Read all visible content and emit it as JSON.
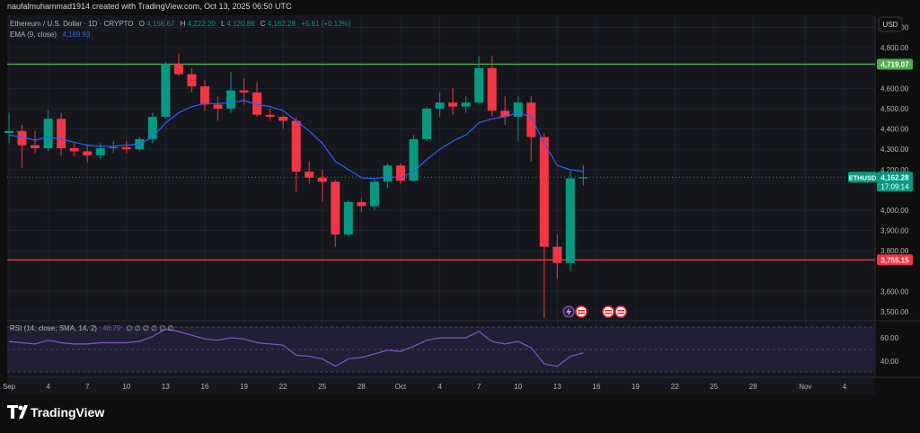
{
  "header": {
    "watermark": "naufalmuhammad1914 created with TradingView.com, Oct 13, 2025 06:50 UTC",
    "symbol": "Ethereum / U.S. Dollar · 1D · CRYPTO",
    "ohlc": {
      "o_label": "O",
      "o_value": "4,156.67",
      "h_label": "H",
      "h_value": "4,222.20",
      "l_label": "L",
      "l_value": "4,120.86",
      "c_label": "C",
      "c_value": "4,162.28",
      "change": "+5.61 (+0.13%)"
    },
    "ema_label": "EMA (9, close)",
    "ema_value": "4,189.93",
    "currency": "USD"
  },
  "rsi_header": {
    "label": "RSI (14, close, SMA, 14, 2)",
    "value": "46.79",
    "placeholders": "∅ ∅ ∅ ∅ ∅ ∅"
  },
  "price_labels": [
    {
      "text": "4,900.00",
      "value": 4900
    },
    {
      "text": "4,800.00",
      "value": 4800
    },
    {
      "text": "4,600.00",
      "value": 4600
    },
    {
      "text": "4,500.00",
      "value": 4500
    },
    {
      "text": "4,400.00",
      "value": 4400
    },
    {
      "text": "4,300.00",
      "value": 4300
    },
    {
      "text": "4,200.00",
      "value": 4200
    },
    {
      "text": "4,000.00",
      "value": 4000
    },
    {
      "text": "3,900.00",
      "value": 3900
    },
    {
      "text": "3,800.00",
      "value": 3800
    },
    {
      "text": "3,600.00",
      "value": 3600
    },
    {
      "text": "3,500.00",
      "value": 3500
    }
  ],
  "rsi_labels": [
    {
      "text": "60.00",
      "value": 60
    },
    {
      "text": "40.00",
      "value": 40
    }
  ],
  "horizontal_lines": [
    {
      "name": "resistance-line",
      "value": 4719.07,
      "label": "4,719.07",
      "color": "#4caf50"
    },
    {
      "name": "support-line",
      "value": 3755.15,
      "label": "3,755.15",
      "color": "#f23645"
    }
  ],
  "current_price": {
    "symbol": "ETHUSD",
    "price": "4,162.28",
    "countdown": "17:09:14",
    "value": 4162.28,
    "color": "#089981"
  },
  "x_labels": [
    {
      "text": "Sep",
      "day": 1
    },
    {
      "text": "4",
      "day": 4
    },
    {
      "text": "7",
      "day": 7
    },
    {
      "text": "10",
      "day": 10
    },
    {
      "text": "13",
      "day": 13
    },
    {
      "text": "16",
      "day": 16
    },
    {
      "text": "19",
      "day": 19
    },
    {
      "text": "22",
      "day": 22
    },
    {
      "text": "25",
      "day": 25
    },
    {
      "text": "28",
      "day": 28
    },
    {
      "text": "Oct",
      "day": 31
    },
    {
      "text": "4",
      "day": 34
    },
    {
      "text": "7",
      "day": 37
    },
    {
      "text": "10",
      "day": 40
    },
    {
      "text": "13",
      "day": 43
    },
    {
      "text": "16",
      "day": 46
    },
    {
      "text": "19",
      "day": 49
    },
    {
      "text": "22",
      "day": 52
    },
    {
      "text": "25",
      "day": 55
    },
    {
      "text": "28",
      "day": 58
    },
    {
      "text": "Nov",
      "day": 62
    },
    {
      "text": "4",
      "day": 65
    }
  ],
  "logo": {
    "text": "TradingView"
  },
  "colors": {
    "up": "#089981",
    "down": "#f23645",
    "ema": "#2962ff",
    "rsi": "#7e57c2",
    "grid": "#1f222b",
    "text": "#b2b5be"
  },
  "chart_data": {
    "type": "candlestick",
    "title": "Ethereum / U.S. Dollar · 1D · CRYPTO",
    "ylim": [
      3460,
      4960
    ],
    "candles": [
      {
        "date": "2025-09-01",
        "o": 4380,
        "h": 4480,
        "l": 4330,
        "c": 4390
      },
      {
        "date": "2025-09-02",
        "o": 4390,
        "h": 4420,
        "l": 4210,
        "c": 4320
      },
      {
        "date": "2025-09-03",
        "o": 4320,
        "h": 4390,
        "l": 4280,
        "c": 4305
      },
      {
        "date": "2025-09-04",
        "o": 4305,
        "h": 4490,
        "l": 4290,
        "c": 4450
      },
      {
        "date": "2025-09-05",
        "o": 4450,
        "h": 4480,
        "l": 4270,
        "c": 4305
      },
      {
        "date": "2025-09-06",
        "o": 4305,
        "h": 4330,
        "l": 4265,
        "c": 4290
      },
      {
        "date": "2025-09-07",
        "o": 4290,
        "h": 4320,
        "l": 4235,
        "c": 4270
      },
      {
        "date": "2025-09-08",
        "o": 4270,
        "h": 4330,
        "l": 4250,
        "c": 4305
      },
      {
        "date": "2025-09-09",
        "o": 4305,
        "h": 4340,
        "l": 4280,
        "c": 4310
      },
      {
        "date": "2025-09-10",
        "o": 4310,
        "h": 4340,
        "l": 4280,
        "c": 4300
      },
      {
        "date": "2025-09-11",
        "o": 4300,
        "h": 4360,
        "l": 4290,
        "c": 4350
      },
      {
        "date": "2025-09-12",
        "o": 4350,
        "h": 4480,
        "l": 4330,
        "c": 4460
      },
      {
        "date": "2025-09-13",
        "o": 4460,
        "h": 4730,
        "l": 4450,
        "c": 4720
      },
      {
        "date": "2025-09-14",
        "o": 4720,
        "h": 4770,
        "l": 4660,
        "c": 4670
      },
      {
        "date": "2025-09-15",
        "o": 4670,
        "h": 4700,
        "l": 4580,
        "c": 4610
      },
      {
        "date": "2025-09-16",
        "o": 4610,
        "h": 4640,
        "l": 4490,
        "c": 4520
      },
      {
        "date": "2025-09-17",
        "o": 4520,
        "h": 4560,
        "l": 4440,
        "c": 4500
      },
      {
        "date": "2025-09-18",
        "o": 4500,
        "h": 4680,
        "l": 4480,
        "c": 4590
      },
      {
        "date": "2025-09-19",
        "o": 4590,
        "h": 4650,
        "l": 4520,
        "c": 4580
      },
      {
        "date": "2025-09-20",
        "o": 4580,
        "h": 4630,
        "l": 4460,
        "c": 4470
      },
      {
        "date": "2025-09-21",
        "o": 4470,
        "h": 4500,
        "l": 4440,
        "c": 4460
      },
      {
        "date": "2025-09-22",
        "o": 4460,
        "h": 4470,
        "l": 4400,
        "c": 4440
      },
      {
        "date": "2025-09-23",
        "o": 4440,
        "h": 4460,
        "l": 4090,
        "c": 4190
      },
      {
        "date": "2025-09-24",
        "o": 4190,
        "h": 4240,
        "l": 4130,
        "c": 4160
      },
      {
        "date": "2025-09-25",
        "o": 4160,
        "h": 4200,
        "l": 4040,
        "c": 4140
      },
      {
        "date": "2025-09-26",
        "o": 4140,
        "h": 4150,
        "l": 3820,
        "c": 3880
      },
      {
        "date": "2025-09-27",
        "o": 3880,
        "h": 4050,
        "l": 3870,
        "c": 4040
      },
      {
        "date": "2025-09-28",
        "o": 4040,
        "h": 4060,
        "l": 3990,
        "c": 4020
      },
      {
        "date": "2025-09-29",
        "o": 4020,
        "h": 4150,
        "l": 4000,
        "c": 4140
      },
      {
        "date": "2025-09-30",
        "o": 4140,
        "h": 4230,
        "l": 4110,
        "c": 4220
      },
      {
        "date": "2025-10-01",
        "o": 4220,
        "h": 4230,
        "l": 4130,
        "c": 4145
      },
      {
        "date": "2025-10-02",
        "o": 4145,
        "h": 4370,
        "l": 4140,
        "c": 4350
      },
      {
        "date": "2025-10-03",
        "o": 4350,
        "h": 4510,
        "l": 4340,
        "c": 4500
      },
      {
        "date": "2025-10-04",
        "o": 4500,
        "h": 4580,
        "l": 4460,
        "c": 4530
      },
      {
        "date": "2025-10-05",
        "o": 4530,
        "h": 4600,
        "l": 4470,
        "c": 4510
      },
      {
        "date": "2025-10-06",
        "o": 4510,
        "h": 4560,
        "l": 4480,
        "c": 4530
      },
      {
        "date": "2025-10-07",
        "o": 4530,
        "h": 4760,
        "l": 4520,
        "c": 4700
      },
      {
        "date": "2025-10-08",
        "o": 4700,
        "h": 4760,
        "l": 4460,
        "c": 4490
      },
      {
        "date": "2025-10-09",
        "o": 4490,
        "h": 4560,
        "l": 4420,
        "c": 4460
      },
      {
        "date": "2025-10-10",
        "o": 4460,
        "h": 4560,
        "l": 4340,
        "c": 4530
      },
      {
        "date": "2025-10-11",
        "o": 4530,
        "h": 4560,
        "l": 4240,
        "c": 4360
      },
      {
        "date": "2025-10-12",
        "o": 4360,
        "h": 4380,
        "l": 3470,
        "c": 3820
      },
      {
        "date": "2025-10-13",
        "o": 3820,
        "h": 3880,
        "l": 3660,
        "c": 3740
      },
      {
        "date": "2025-10-14",
        "o": 3740,
        "h": 4200,
        "l": 3700,
        "c": 4156.67
      },
      {
        "date": "2025-10-15",
        "o": 4156.67,
        "h": 4222.2,
        "l": 4120.86,
        "c": 4162.28
      }
    ],
    "ema": [
      4370,
      4360,
      4345,
      4360,
      4350,
      4335,
      4320,
      4315,
      4315,
      4320,
      4325,
      4360,
      4430,
      4480,
      4510,
      4525,
      4525,
      4530,
      4540,
      4520,
      4510,
      4490,
      4440,
      4390,
      4330,
      4240,
      4200,
      4160,
      4155,
      4165,
      4160,
      4190,
      4250,
      4300,
      4340,
      4370,
      4430,
      4450,
      4460,
      4480,
      4460,
      4330,
      4220,
      4200,
      4189.93
    ],
    "rsi": [
      56,
      55,
      54,
      57,
      55,
      54,
      54,
      55,
      55,
      55,
      56,
      60,
      66,
      64,
      61,
      58,
      57,
      59,
      58,
      55,
      54,
      53,
      45,
      44,
      42,
      36,
      42,
      43,
      46,
      49,
      48,
      52,
      57,
      59,
      59,
      59,
      64,
      56,
      54,
      56,
      51,
      38,
      36,
      44,
      46.79
    ],
    "rsi_ylim": [
      30,
      72
    ]
  }
}
